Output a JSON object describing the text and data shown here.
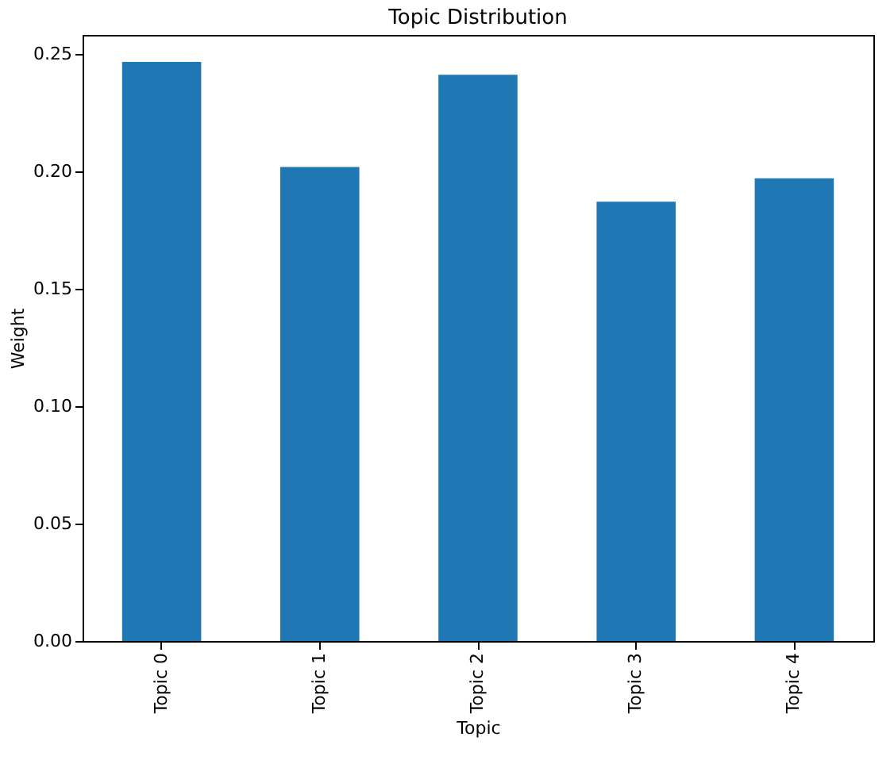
{
  "chart_data": {
    "type": "bar",
    "title": "Topic Distribution",
    "xlabel": "Topic",
    "ylabel": "Weight",
    "categories": [
      "Topic 0",
      "Topic 1",
      "Topic 2",
      "Topic 3",
      "Topic 4"
    ],
    "values": [
      0.2465,
      0.2018,
      0.241,
      0.187,
      0.197
    ],
    "color": "#1f77b4",
    "ylim": [
      0,
      0.258
    ],
    "yticks": [
      {
        "value": 0,
        "label": "0.00"
      },
      {
        "value": 0.05,
        "label": "0.05"
      },
      {
        "value": 0.1,
        "label": "0.10"
      },
      {
        "value": 0.15,
        "label": "0.15"
      },
      {
        "value": 0.2,
        "label": "0.20"
      },
      {
        "value": 0.25,
        "label": "0.25"
      }
    ],
    "grid": false
  }
}
